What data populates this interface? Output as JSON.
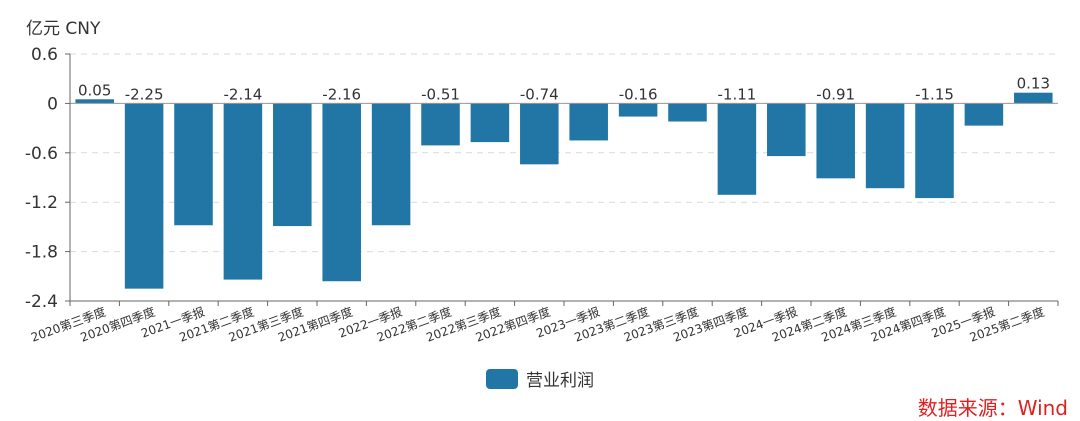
{
  "unit_label": "亿元  CNY",
  "source_label": "数据来源：Wind",
  "colors": {
    "bar": "#2176a5",
    "grid": "#d9d9d9",
    "axis": "#666666",
    "text": "#333333",
    "source": "#e02020"
  },
  "chart_data": {
    "type": "bar",
    "title": "",
    "xlabel": "",
    "ylabel": "亿元  CNY",
    "ylim": [
      -2.4,
      0.6
    ],
    "yticks": [
      "0.6",
      "0",
      "-0.6",
      "-1.2",
      "-1.8",
      "-2.4"
    ],
    "ytick_values": [
      0.6,
      0,
      -0.6,
      -1.2,
      -1.8,
      -2.4
    ],
    "grid": true,
    "legend_position": "bottom-center",
    "categories": [
      "2020第三季度",
      "2020第四季度",
      "2021一季报",
      "2021第二季度",
      "2021第三季度",
      "2021第四季度",
      "2022一季报",
      "2022第二季度",
      "2022第三季度",
      "2022第四季度",
      "2023一季报",
      "2023第二季度",
      "2023第三季度",
      "2023第四季度",
      "2024一季报",
      "2024第二季度",
      "2024第三季度",
      "2024第四季度",
      "2025一季报",
      "2025第二季度"
    ],
    "series": [
      {
        "name": "营业利润",
        "values": [
          0.05,
          -2.25,
          -1.48,
          -2.14,
          -1.49,
          -2.16,
          -1.48,
          -0.51,
          -0.47,
          -0.74,
          -0.45,
          -0.16,
          -0.22,
          -1.11,
          -0.64,
          -0.91,
          -1.03,
          -1.15,
          -0.27,
          0.13
        ]
      }
    ],
    "data_labels": [
      "0.05",
      "-2.25",
      "",
      "-2.14",
      "",
      "-2.16",
      "",
      "-0.51",
      "",
      "-0.74",
      "",
      "-0.16",
      "",
      "-1.11",
      "",
      "-0.91",
      "",
      "-1.15",
      "",
      "0.13"
    ]
  }
}
